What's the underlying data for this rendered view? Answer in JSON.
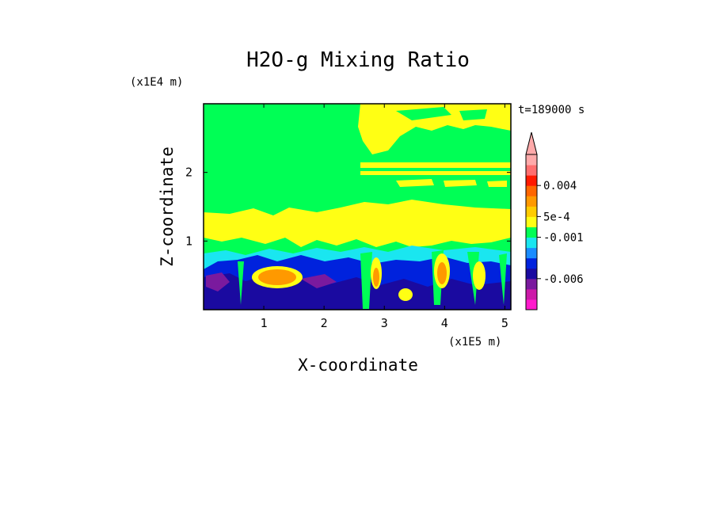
{
  "chart_data": {
    "type": "heatmap",
    "title": "H2O-g Mixing Ratio",
    "xlabel": "X-coordinate",
    "ylabel": "Z-coordinate",
    "x_unit": "(x1E5 m)",
    "y_unit": "(x1E4 m)",
    "time_label": "t=189000 s",
    "x_ticks": [
      "1",
      "2",
      "3",
      "4",
      "5"
    ],
    "x_tick_values": [
      1,
      2,
      3,
      4,
      5
    ],
    "y_ticks": [
      "1",
      "2"
    ],
    "y_tick_values": [
      1,
      2
    ],
    "xlim": [
      0,
      5.1
    ],
    "ylim": [
      0,
      3.0
    ],
    "colorbar": {
      "colors": [
        "#ff1acc",
        "#cc1aa8",
        "#7a1a9e",
        "#1a0aa0",
        "#0022dd",
        "#1a8cff",
        "#1ae6f0",
        "#00ff55",
        "#ffff14",
        "#ffcc00",
        "#ff9900",
        "#ff6600",
        "#ff1a00",
        "#ff6f6f",
        "#ffaaaa"
      ],
      "labels": [
        "0.004",
        "5e-4",
        "-0.001",
        "-0.006"
      ],
      "label_boundaries": [
        12,
        9,
        7,
        3
      ],
      "extend": "max"
    },
    "field": {
      "background": "#00ff55",
      "regions": [
        {
          "band": "upper-left",
          "color": "#00ff55"
        },
        {
          "band": "upper-right",
          "color": "#ffff14"
        },
        {
          "band": "mid-level",
          "color": "#ffff14"
        },
        {
          "band": "lower-level",
          "color": "#1ae6f0"
        },
        {
          "band": "near-surface",
          "color": "#0022dd"
        },
        {
          "band": "surface",
          "color": "#1a0aa0"
        },
        {
          "band": "cells",
          "color": "#ff9900"
        }
      ]
    }
  }
}
